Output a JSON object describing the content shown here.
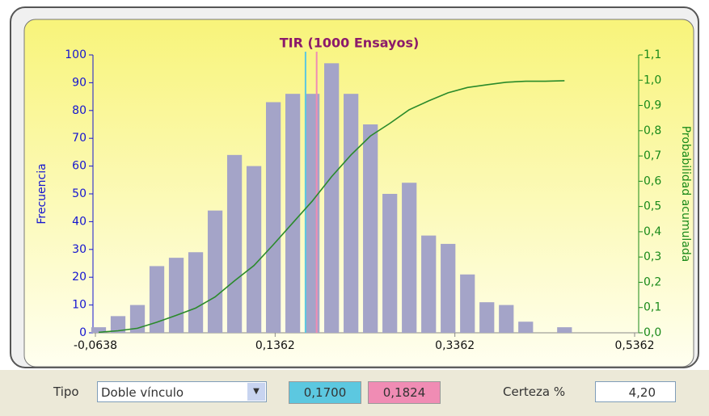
{
  "chart_data": {
    "type": "histogram",
    "title": "TIR (1000 Ensayos)",
    "y_label": "Frecuencia",
    "y2_label": "Probabilidad acumulada",
    "bins": [
      -0.071,
      -0.0494,
      -0.0278,
      -0.0062,
      0.0154,
      0.037,
      0.0586,
      0.0802,
      0.1018,
      0.1234,
      0.145,
      0.1666,
      0.1882,
      0.2098,
      0.2314,
      0.253,
      0.2746,
      0.2962,
      0.3178,
      0.3394,
      0.361,
      0.3826,
      0.4042,
      0.4258,
      0.4474,
      0.469
    ],
    "counts": [
      2,
      6,
      10,
      24,
      27,
      29,
      44,
      64,
      60,
      83,
      86,
      86,
      97,
      86,
      75,
      50,
      54,
      35,
      32,
      21,
      11,
      10,
      4,
      0,
      2
    ],
    "color": "#a4a4c8",
    "line": {
      "axis": "y2",
      "color": "#2a8a2a",
      "x": [
        -0.0602,
        -0.0386,
        -0.017,
        0.0046,
        0.0262,
        0.0478,
        0.0694,
        0.091,
        0.1126,
        0.1342,
        0.1558,
        0.1774,
        0.199,
        0.2206,
        0.2422,
        0.2638,
        0.2854,
        0.307,
        0.3286,
        0.3502,
        0.3718,
        0.3934,
        0.415,
        0.4366,
        0.4582
      ],
      "values": [
        0.002,
        0.008,
        0.018,
        0.042,
        0.069,
        0.098,
        0.142,
        0.206,
        0.266,
        0.349,
        0.435,
        0.521,
        0.618,
        0.704,
        0.779,
        0.829,
        0.883,
        0.918,
        0.95,
        0.971,
        0.982,
        0.992,
        0.996,
        0.996,
        0.998
      ]
    },
    "markers": [
      {
        "value": 0.17,
        "label": "0,1700",
        "color": "#5cc8e0"
      },
      {
        "value": 0.1824,
        "label": "0,1824",
        "color": "#f08cb4"
      }
    ],
    "xlim": [
      -0.0638,
      0.5362
    ],
    "xticks": [
      {
        "value": -0.0638,
        "label": "-0,0638"
      },
      {
        "value": 0.1362,
        "label": "0,1362"
      },
      {
        "value": 0.3362,
        "label": "0,3362"
      },
      {
        "value": 0.5362,
        "label": "0,5362"
      }
    ],
    "ylim": [
      0,
      100
    ],
    "yticks": [
      0,
      10,
      20,
      30,
      40,
      50,
      60,
      70,
      80,
      90,
      100
    ],
    "y2lim": [
      0,
      1.1
    ],
    "y2ticks": [
      {
        "value": 0,
        "label": "0,0"
      },
      {
        "value": 0.1,
        "label": "0,1"
      },
      {
        "value": 0.2,
        "label": "0,2"
      },
      {
        "value": 0.3,
        "label": "0,3"
      },
      {
        "value": 0.4,
        "label": "0,4"
      },
      {
        "value": 0.5,
        "label": "0,5"
      },
      {
        "value": 0.6,
        "label": "0,6"
      },
      {
        "value": 0.7,
        "label": "0,7"
      },
      {
        "value": 0.8,
        "label": "0,8"
      },
      {
        "value": 0.9,
        "label": "0,9"
      },
      {
        "value": 1.0,
        "label": "1,0"
      },
      {
        "value": 1.1,
        "label": "1,1"
      }
    ]
  },
  "controls": {
    "type_label": "Tipo",
    "type_value": "Doble vínculo",
    "certainty_label": "Certeza %",
    "certainty_value": "4,20"
  }
}
